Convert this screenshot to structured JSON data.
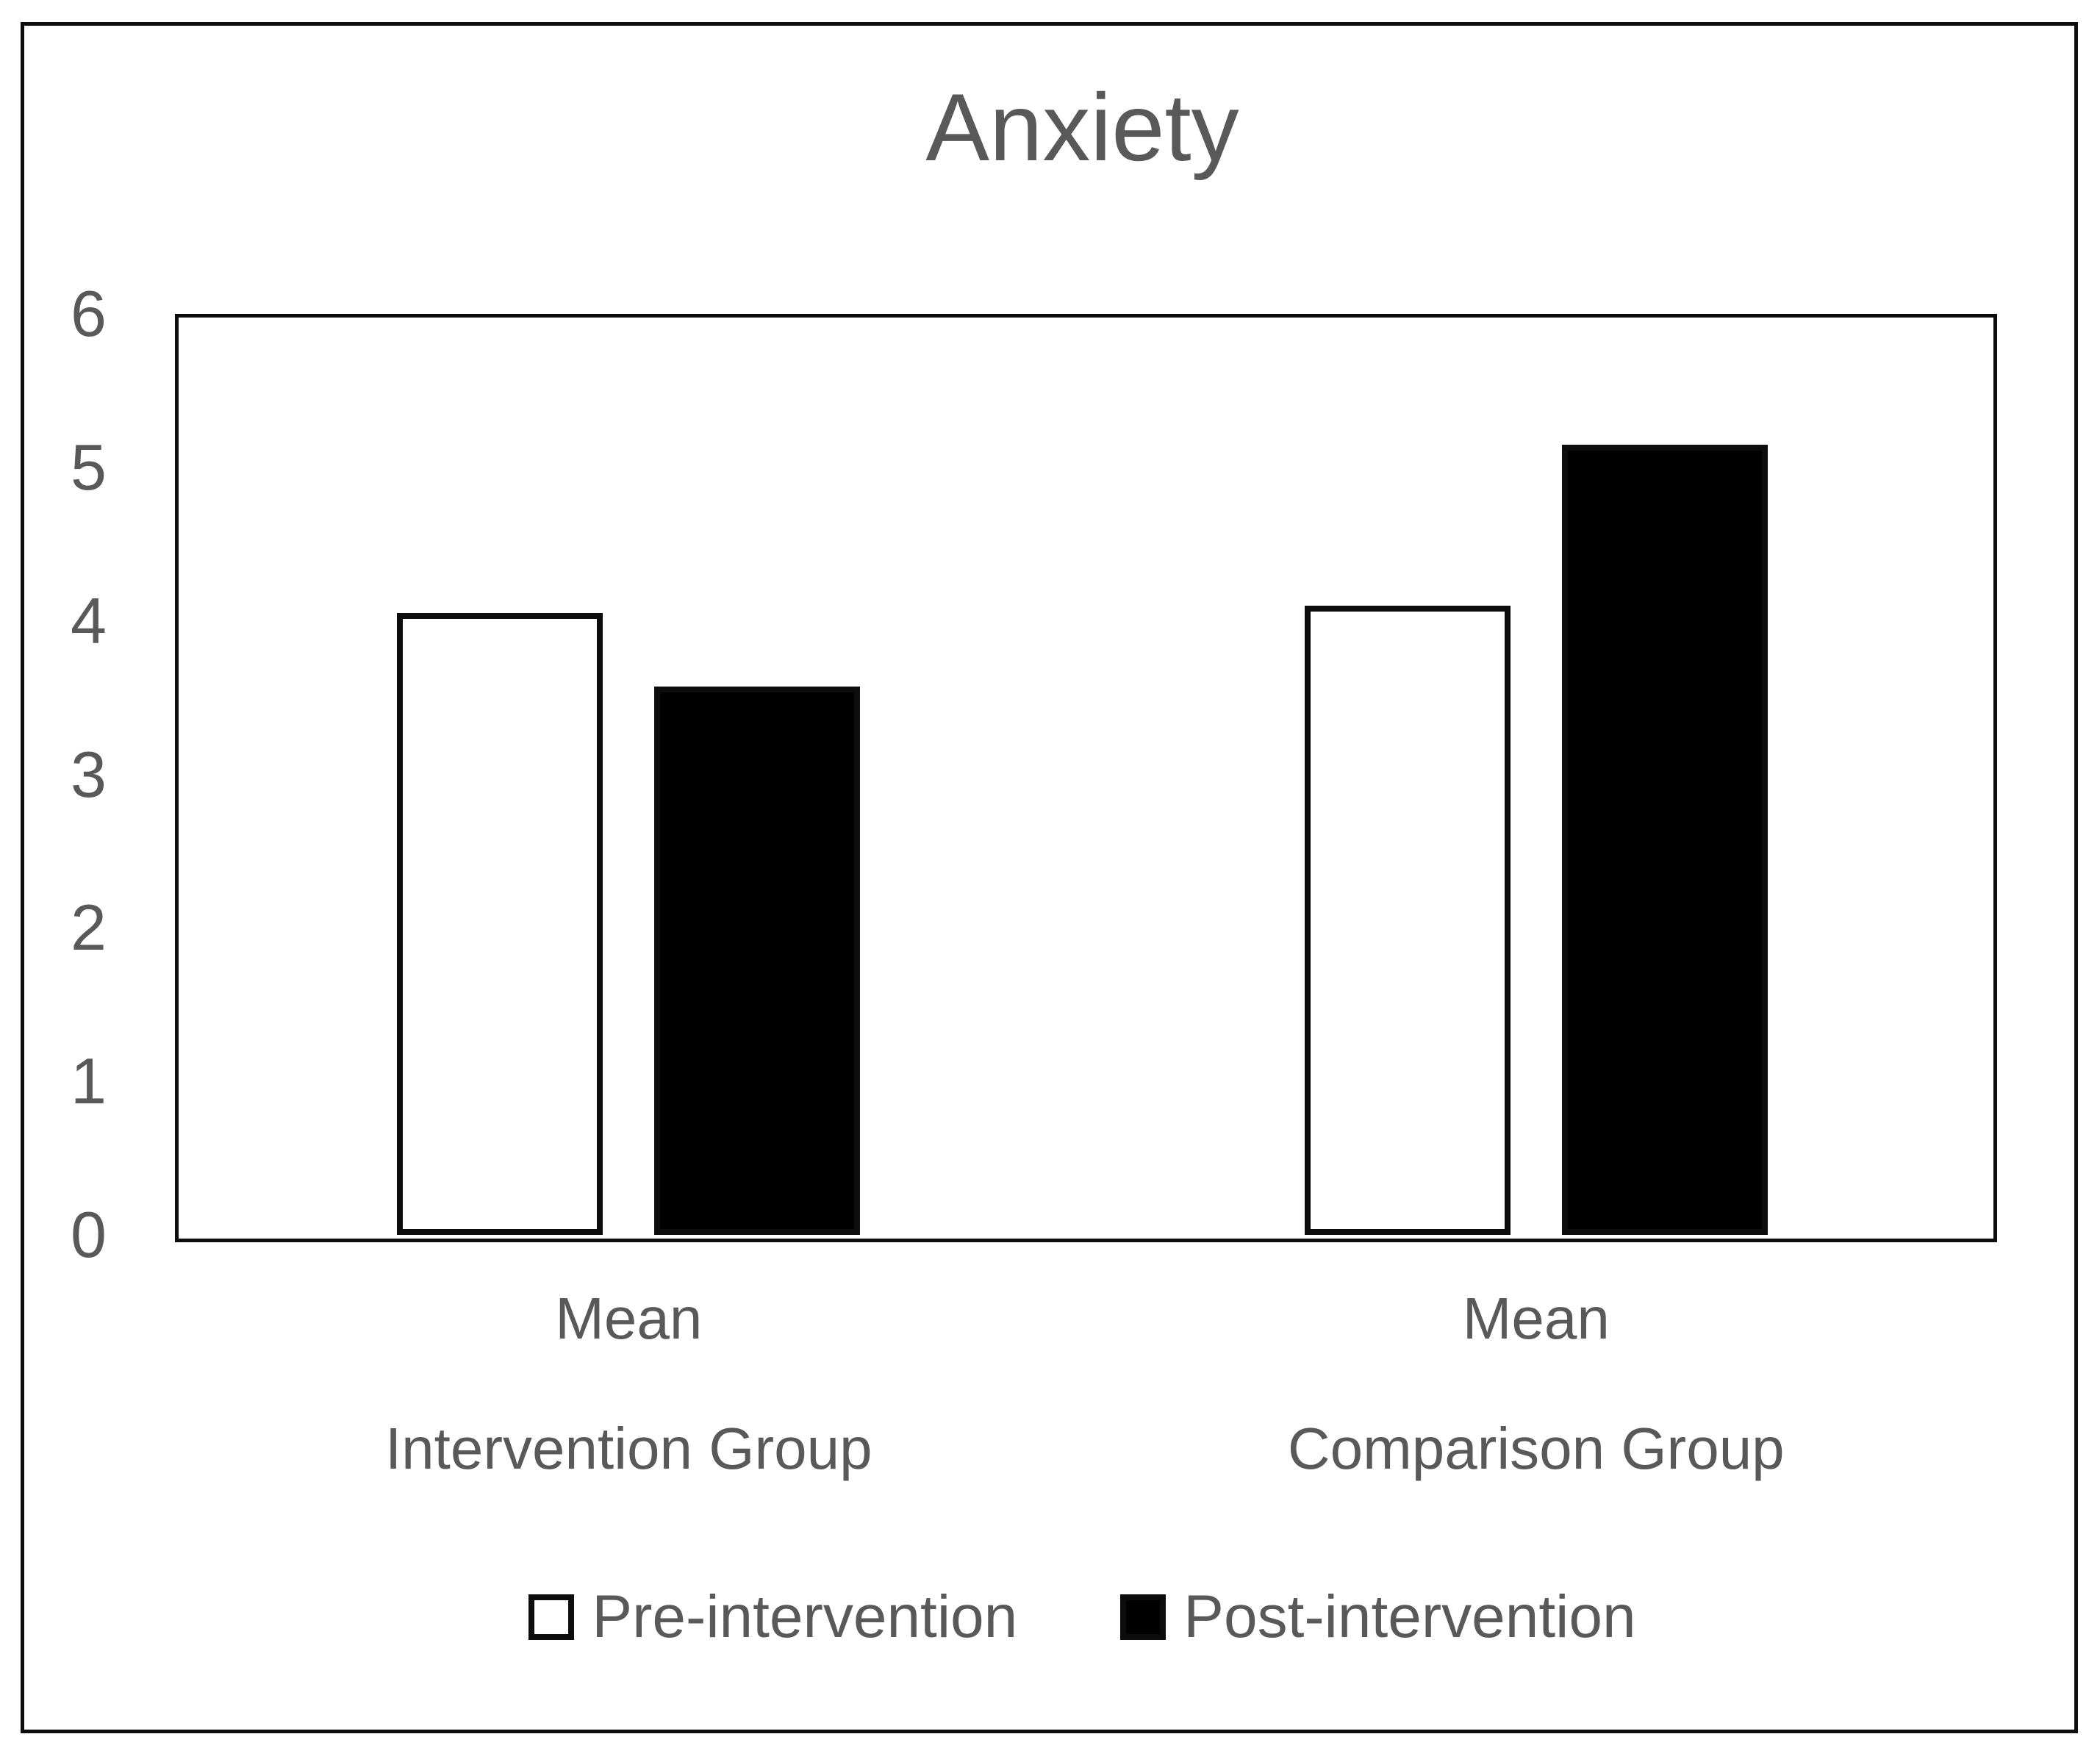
{
  "figure": {
    "title": "Anxiety"
  },
  "chart_data": {
    "type": "bar",
    "title": "Anxiety",
    "categories": [
      [
        "Mean",
        "Intervention Group"
      ],
      [
        "Mean",
        "Comparison Group"
      ]
    ],
    "series": [
      {
        "name": "Pre-intervention",
        "fill": "#ffffff",
        "values": [
          4.05,
          4.1
        ]
      },
      {
        "name": "Post-intervention",
        "fill": "#000000",
        "values": [
          3.57,
          5.15
        ]
      }
    ],
    "ylim": [
      0,
      6
    ],
    "yticks": [
      6,
      5,
      4,
      3,
      2,
      1,
      0
    ],
    "xlabel": "",
    "ylabel": "",
    "grid": false,
    "legend_position": "bottom",
    "colors": {
      "text": "#595959",
      "axis": "#0d0d0d",
      "bar_outline": "#0d0d0d"
    }
  }
}
